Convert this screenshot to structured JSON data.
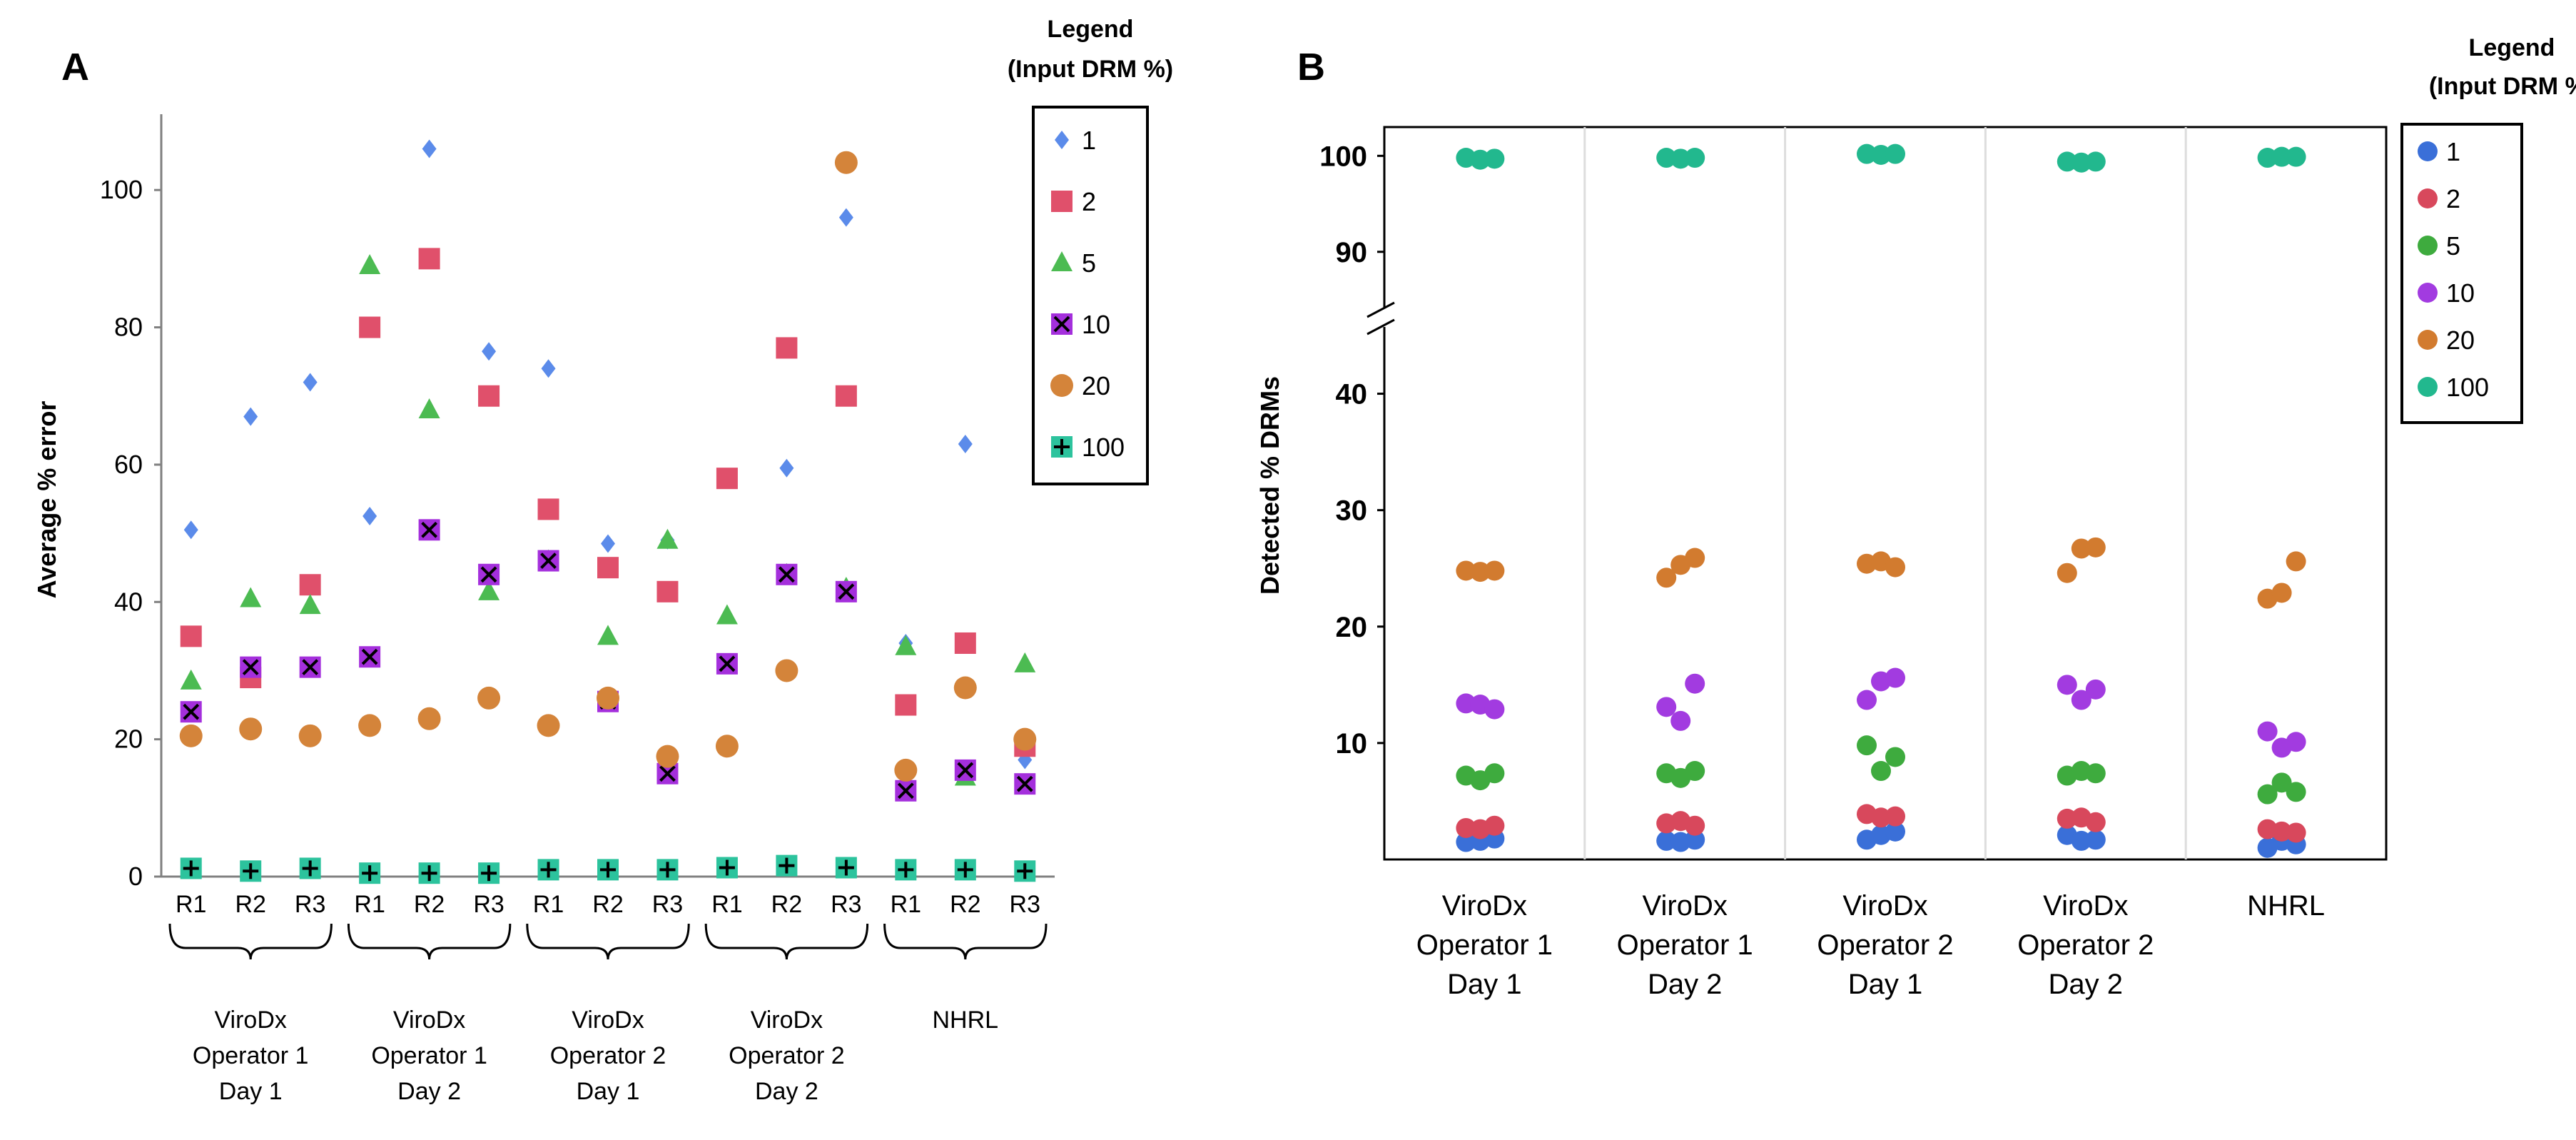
{
  "chart_data": [
    {
      "panel": "A",
      "type": "scatter",
      "ylabel": "Average % error",
      "ylim": [
        0,
        110
      ],
      "yticks": [
        "0",
        "20",
        "40",
        "60",
        "80",
        "100"
      ],
      "yticks_values": [
        0,
        20,
        40,
        60,
        80,
        100
      ],
      "groups": [
        {
          "lines": [
            "ViroDx",
            "Operator 1",
            "Day 1"
          ],
          "replicates": [
            "R1",
            "R2",
            "R3"
          ]
        },
        {
          "lines": [
            "ViroDx",
            "Operator 1",
            "Day 2"
          ],
          "replicates": [
            "R1",
            "R2",
            "R3"
          ]
        },
        {
          "lines": [
            "ViroDx",
            "Operator 2",
            "Day 1"
          ],
          "replicates": [
            "R1",
            "R2",
            "R3"
          ]
        },
        {
          "lines": [
            "ViroDx",
            "Operator 2",
            "Day 2"
          ],
          "replicates": [
            "R1",
            "R2",
            "R3"
          ]
        },
        {
          "lines": [
            "NHRL"
          ],
          "replicates": [
            "R1",
            "R2",
            "R3"
          ]
        }
      ],
      "legend_title": [
        "Legend",
        "(Input DRM %)"
      ],
      "series": [
        {
          "name": "1",
          "marker": "diamond",
          "color": "#5b8bea",
          "values": [
            50.5,
            67,
            72,
            52.5,
            106,
            76.5,
            74,
            48.5,
            49,
            58,
            59.5,
            96,
            34,
            63,
            17
          ]
        },
        {
          "name": "2",
          "marker": "square",
          "color": "#e0506b",
          "values": [
            35,
            29,
            42.5,
            80,
            90,
            70,
            53.5,
            45,
            41.5,
            58,
            77,
            70,
            25,
            34,
            19
          ]
        },
        {
          "name": "5",
          "marker": "triangle",
          "color": "#4cbb52",
          "values": [
            28.5,
            40.5,
            39.5,
            89,
            68,
            41.5,
            46,
            35,
            49,
            38,
            44,
            42,
            33.5,
            14.5,
            31
          ]
        },
        {
          "name": "10",
          "marker": "xsquare",
          "color": "#a42fdc",
          "values": [
            24,
            30.5,
            30.5,
            32,
            50.5,
            44,
            46,
            25.5,
            15,
            31,
            44,
            41.5,
            12.5,
            15.5,
            13.5
          ]
        },
        {
          "name": "20",
          "marker": "circle",
          "color": "#d4843a",
          "values": [
            20.5,
            21.5,
            20.5,
            22,
            23,
            26,
            22,
            26,
            17.5,
            19,
            30,
            104,
            15.5,
            27.5,
            20
          ]
        },
        {
          "name": "100",
          "marker": "plussquare",
          "color": "#2cc39d",
          "values": [
            1.2,
            0.8,
            1.2,
            0.5,
            0.5,
            0.5,
            1.0,
            1.0,
            1.0,
            1.3,
            1.6,
            1.3,
            1.0,
            1.0,
            0.8
          ]
        }
      ]
    },
    {
      "panel": "B",
      "type": "scatter",
      "ylabel": "Detected % DRMs",
      "axis_break": true,
      "ylim_lower": [
        0,
        45
      ],
      "ylim_upper": [
        85,
        103
      ],
      "yticks": [
        "10",
        "20",
        "30",
        "40",
        "90",
        "100"
      ],
      "yticks_values": [
        10,
        20,
        30,
        40,
        90,
        100
      ],
      "categories": [
        [
          "ViroDx",
          "Operator 1",
          "Day 1"
        ],
        [
          "ViroDx",
          "Operator 1",
          "Day 2"
        ],
        [
          "ViroDx",
          "Operator 2",
          "Day 1"
        ],
        [
          "ViroDx",
          "Operator 2",
          "Day 2"
        ],
        [
          "NHRL"
        ]
      ],
      "legend_title": [
        "Legend",
        "(Input DRM %)"
      ],
      "series": [
        {
          "name": "1",
          "color": "#3a6fd8",
          "points": [
            [
              0,
              1.5
            ],
            [
              0,
              1.6
            ],
            [
              0,
              1.8
            ],
            [
              1,
              1.6
            ],
            [
              1,
              1.5
            ],
            [
              1,
              1.7
            ],
            [
              2,
              1.7
            ],
            [
              2,
              2.1
            ],
            [
              2,
              2.4
            ],
            [
              3,
              2.1
            ],
            [
              3,
              1.6
            ],
            [
              3,
              1.7
            ],
            [
              4,
              1.0
            ],
            [
              4,
              1.6
            ],
            [
              4,
              1.3
            ]
          ]
        },
        {
          "name": "2",
          "color": "#d8485c",
          "points": [
            [
              0,
              2.7
            ],
            [
              0,
              2.6
            ],
            [
              0,
              2.9
            ],
            [
              1,
              3.1
            ],
            [
              1,
              3.3
            ],
            [
              1,
              2.9
            ],
            [
              2,
              3.9
            ],
            [
              2,
              3.6
            ],
            [
              2,
              3.7
            ],
            [
              3,
              3.5
            ],
            [
              3,
              3.6
            ],
            [
              3,
              3.2
            ],
            [
              4,
              2.6
            ],
            [
              4,
              2.4
            ],
            [
              4,
              2.3
            ]
          ]
        },
        {
          "name": "5",
          "color": "#3eab3e",
          "points": [
            [
              0,
              7.2
            ],
            [
              0,
              6.8
            ],
            [
              0,
              7.4
            ],
            [
              1,
              7.4
            ],
            [
              1,
              7.0
            ],
            [
              1,
              7.6
            ],
            [
              2,
              9.8
            ],
            [
              2,
              7.6
            ],
            [
              2,
              8.8
            ],
            [
              3,
              7.2
            ],
            [
              3,
              7.6
            ],
            [
              3,
              7.4
            ],
            [
              4,
              5.6
            ],
            [
              4,
              6.6
            ],
            [
              4,
              5.8
            ]
          ]
        },
        {
          "name": "10",
          "color": "#a23be0",
          "points": [
            [
              0,
              13.4
            ],
            [
              0,
              13.3
            ],
            [
              0,
              12.9
            ],
            [
              1,
              13.1
            ],
            [
              1,
              11.9
            ],
            [
              1,
              15.1
            ],
            [
              2,
              13.7
            ],
            [
              2,
              15.3
            ],
            [
              2,
              15.6
            ],
            [
              3,
              15.0
            ],
            [
              3,
              13.7
            ],
            [
              3,
              14.6
            ],
            [
              4,
              11.0
            ],
            [
              4,
              9.6
            ],
            [
              4,
              10.1
            ]
          ]
        },
        {
          "name": "20",
          "color": "#d27b2f",
          "points": [
            [
              0,
              24.8
            ],
            [
              0,
              24.7
            ],
            [
              0,
              24.8
            ],
            [
              1,
              24.2
            ],
            [
              1,
              25.3
            ],
            [
              1,
              25.9
            ],
            [
              2,
              25.4
            ],
            [
              2,
              25.6
            ],
            [
              2,
              25.1
            ],
            [
              3,
              24.6
            ],
            [
              3,
              26.7
            ],
            [
              3,
              26.8
            ],
            [
              4,
              22.4
            ],
            [
              4,
              22.9
            ],
            [
              4,
              25.6
            ]
          ]
        },
        {
          "name": "100",
          "color": "#22b88e",
          "points": [
            [
              0,
              99.8
            ],
            [
              0,
              99.6
            ],
            [
              0,
              99.7
            ],
            [
              1,
              99.8
            ],
            [
              1,
              99.7
            ],
            [
              1,
              99.8
            ],
            [
              2,
              100.2
            ],
            [
              2,
              100.1
            ],
            [
              2,
              100.2
            ],
            [
              3,
              99.4
            ],
            [
              3,
              99.3
            ],
            [
              3,
              99.4
            ],
            [
              4,
              99.8
            ],
            [
              4,
              99.9
            ],
            [
              4,
              99.9
            ]
          ]
        }
      ]
    }
  ]
}
